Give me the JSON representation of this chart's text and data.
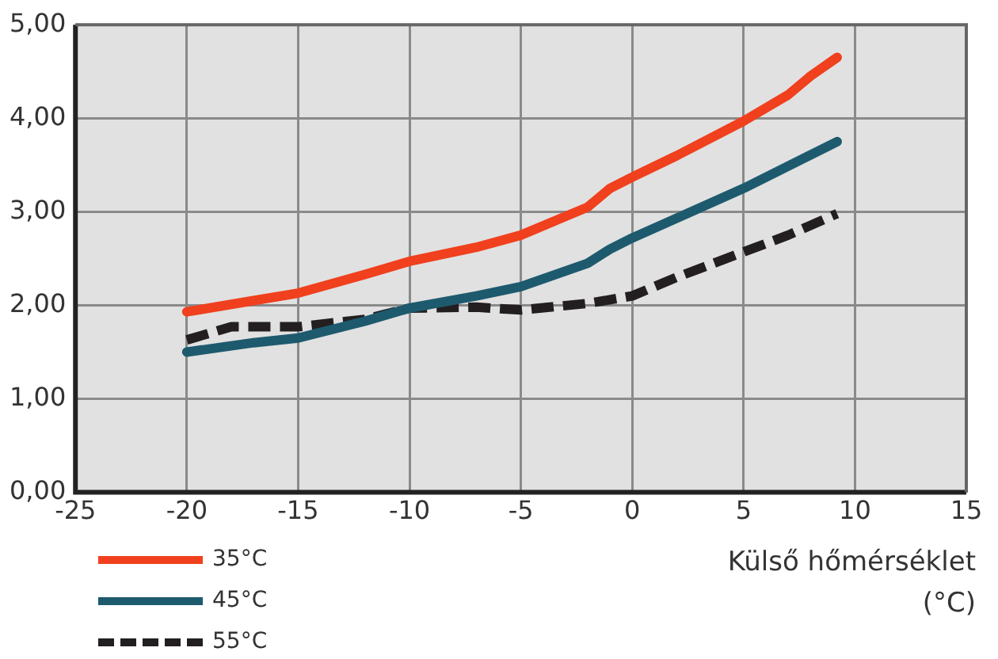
{
  "chart_data": {
    "type": "line",
    "xlabel": "Külső hőmérséklet (°C)",
    "xlim": [
      -25,
      15
    ],
    "xticks": [
      -25,
      -20,
      -15,
      -10,
      -5,
      0,
      5,
      10,
      15
    ],
    "ylim": [
      0,
      5
    ],
    "yticks": [
      {
        "value": 0,
        "label": "0,00"
      },
      {
        "value": 1,
        "label": "1,00"
      },
      {
        "value": 2,
        "label": "2,00"
      },
      {
        "value": 3,
        "label": "3,00"
      },
      {
        "value": 4,
        "label": "4,00"
      },
      {
        "value": 5,
        "label": "5,00"
      }
    ],
    "grid": true,
    "legend": "bottom left",
    "marker": "none",
    "series": [
      {
        "name": "35°C",
        "color": "#f0401e",
        "line_style": "solid",
        "x": [
          -20,
          -17,
          -15,
          -12,
          -10,
          -7,
          -5,
          -3,
          -2,
          -1,
          0,
          2,
          5,
          7,
          8,
          9.2
        ],
        "values": [
          1.93,
          2.05,
          2.13,
          2.33,
          2.47,
          2.62,
          2.75,
          2.95,
          3.05,
          3.25,
          3.37,
          3.6,
          3.97,
          4.25,
          4.45,
          4.65
        ]
      },
      {
        "name": "45°C",
        "color": "#1e5a6e",
        "line_style": "solid",
        "x": [
          -20,
          -17,
          -15,
          -12,
          -10,
          -7,
          -5,
          -2,
          -1,
          0,
          5,
          9.2
        ],
        "values": [
          1.5,
          1.6,
          1.65,
          1.83,
          1.97,
          2.1,
          2.2,
          2.45,
          2.6,
          2.72,
          3.25,
          3.75
        ]
      },
      {
        "name": "55°C",
        "color": "#231f20",
        "line_style": "dashed",
        "x": [
          -20,
          -18,
          -15,
          -12,
          -10,
          -7,
          -5,
          -2,
          0,
          2,
          5,
          7,
          9.2
        ],
        "values": [
          1.63,
          1.77,
          1.77,
          1.85,
          1.97,
          1.98,
          1.95,
          2.02,
          2.1,
          2.3,
          2.57,
          2.75,
          2.98
        ]
      }
    ]
  }
}
